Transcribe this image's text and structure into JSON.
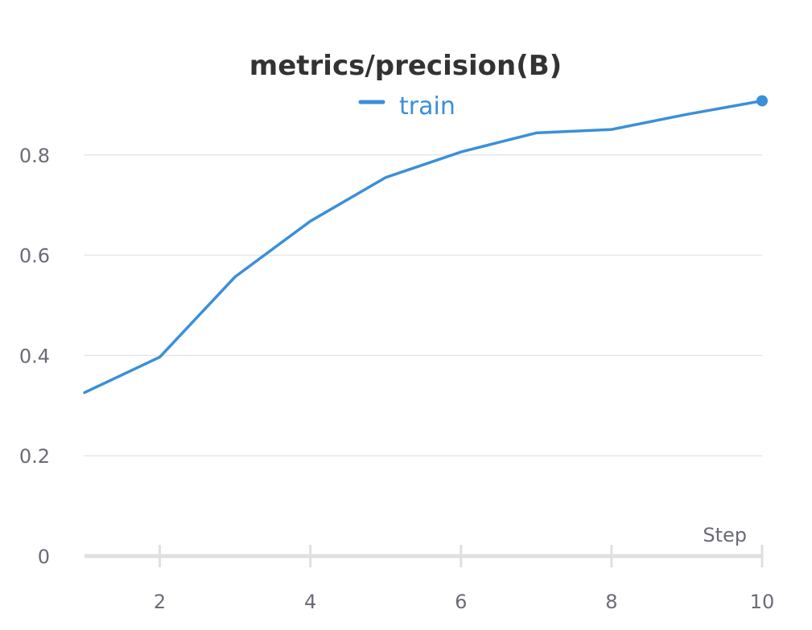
{
  "chart_data": {
    "type": "line",
    "title": "metrics/precision(B)",
    "xlabel": "Step",
    "ylabel": "",
    "x": [
      1,
      2,
      3,
      4,
      5,
      6,
      7,
      8,
      9,
      10
    ],
    "series": [
      {
        "name": "train",
        "color": "#3b8fd9",
        "values": [
          0.326,
          0.397,
          0.557,
          0.668,
          0.755,
          0.806,
          0.844,
          0.851,
          0.881,
          0.908
        ]
      }
    ],
    "xlim": [
      1,
      10
    ],
    "ylim": [
      0,
      0.92
    ],
    "x_ticks": [
      2,
      4,
      6,
      8,
      10
    ],
    "x_tick_labels": [
      "2",
      "4",
      "6",
      "8",
      "10"
    ],
    "y_ticks": [
      0,
      0.2,
      0.4,
      0.6,
      0.8
    ],
    "y_tick_labels": [
      "0",
      "0.2",
      "0.4",
      "0.6",
      "0.8"
    ],
    "grid": true,
    "legend_position": "top-center",
    "colors": {
      "title": "#333333",
      "tick_label": "#6b6b76",
      "grid": "#e6e6e6",
      "axis": "#e0e0e0"
    }
  }
}
